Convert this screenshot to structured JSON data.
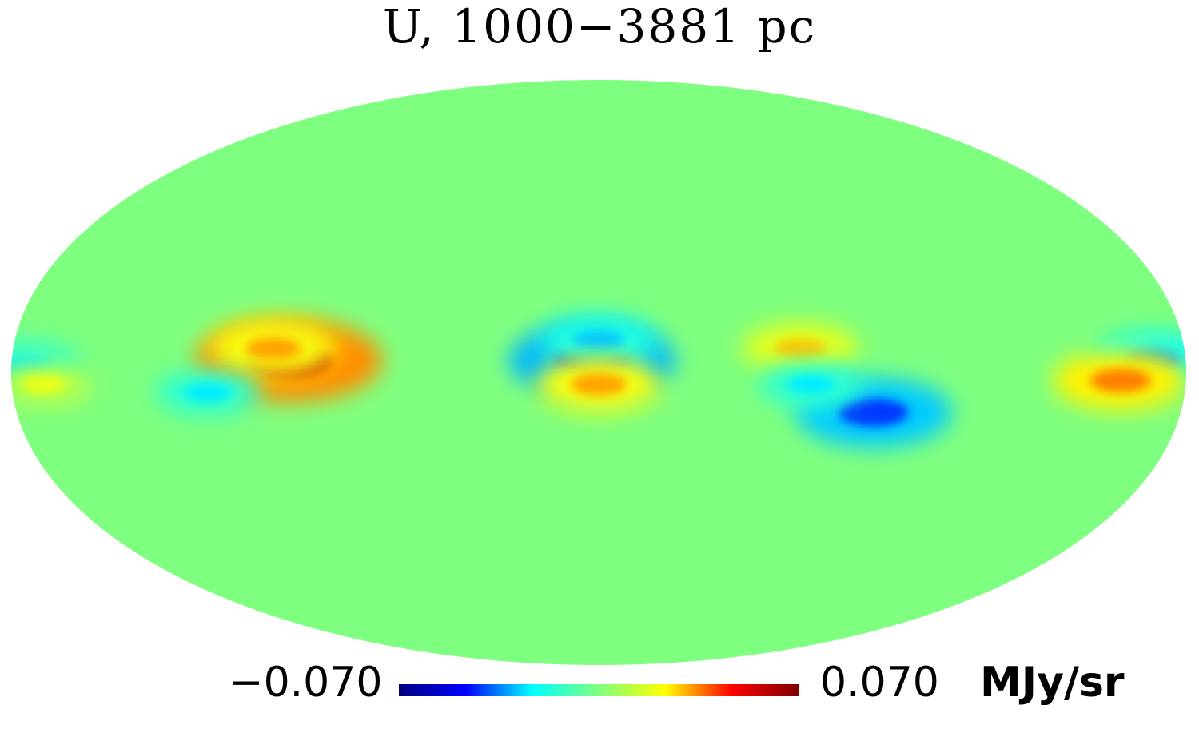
{
  "title": "U, 1000−3881 pc",
  "colorbar": {
    "min_label": "−0.070",
    "max_label": "0.070",
    "unit": "MJy/sr",
    "min": -0.07,
    "max": 0.07,
    "colormap": "jet",
    "stops": [
      "#00007f",
      "#0000ff",
      "#00ffff",
      "#7fff7f",
      "#ffff00",
      "#ff0000",
      "#7f0000"
    ]
  },
  "chart_data": {
    "type": "heatmap",
    "projection": "mollweide",
    "title": "U, 1000−3881 pc",
    "background_value": 0.0,
    "value_range": [
      -0.07,
      0.07
    ],
    "unit": "MJy/sr",
    "features": [
      {
        "name": "",
        "lon": 95,
        "lat": 3,
        "value": 0.06
      },
      {
        "name": "",
        "lon": 100,
        "lat": 6,
        "value": 0.03
      },
      {
        "name": "",
        "lon": 2,
        "lat": 3,
        "value": -0.05
      },
      {
        "name": "",
        "lon": 0,
        "lat": 8,
        "value": -0.025
      },
      {
        "name": "",
        "lon": -62,
        "lat": 6,
        "value": 0.025
      },
      {
        "name": "",
        "lon": 0,
        "lat": -3,
        "value": 0.03
      },
      {
        "name": "",
        "lon": -85,
        "lat": -10,
        "value": -0.045
      },
      {
        "name": "",
        "lon": -65,
        "lat": -3,
        "value": -0.02
      },
      {
        "name": "",
        "lon": 120,
        "lat": -5,
        "value": -0.02
      },
      {
        "name": "",
        "lon": -170,
        "lat": 3,
        "value": -0.03
      },
      {
        "name": "",
        "lon": 175,
        "lat": 2,
        "value": -0.02
      },
      {
        "name": "",
        "lon": -160,
        "lat": -2,
        "value": 0.035
      },
      {
        "name": "",
        "lon": 170,
        "lat": -3,
        "value": 0.015
      }
    ]
  }
}
